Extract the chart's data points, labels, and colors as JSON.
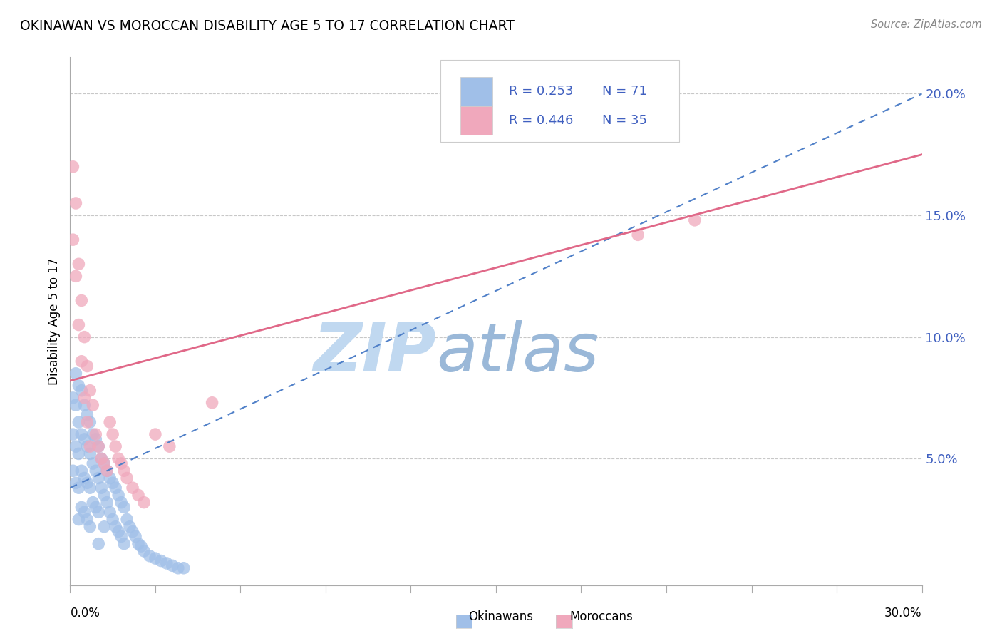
{
  "title": "OKINAWAN VS MOROCCAN DISABILITY AGE 5 TO 17 CORRELATION CHART",
  "source": "Source: ZipAtlas.com",
  "ylabel": "Disability Age 5 to 17",
  "xmin": 0.0,
  "xmax": 0.3,
  "ymin": -0.002,
  "ymax": 0.215,
  "right_yticks": [
    0.05,
    0.1,
    0.15,
    0.2
  ],
  "right_yticklabels": [
    "5.0%",
    "10.0%",
    "15.0%",
    "20.0%"
  ],
  "okinawan_R": 0.253,
  "okinawan_N": 71,
  "moroccan_R": 0.446,
  "moroccan_N": 35,
  "blue_dot_color": "#a0bfe8",
  "pink_dot_color": "#f0a8bc",
  "blue_line_color": "#5080c8",
  "pink_line_color": "#e06888",
  "legend_text_color": "#4060c0",
  "watermark_zip_color": "#c0d8f0",
  "watermark_atlas_color": "#9ab8d8",
  "grid_color": "#c8c8c8",
  "okinawan_x": [
    0.001,
    0.001,
    0.001,
    0.002,
    0.002,
    0.002,
    0.002,
    0.003,
    0.003,
    0.003,
    0.003,
    0.003,
    0.004,
    0.004,
    0.004,
    0.004,
    0.005,
    0.005,
    0.005,
    0.005,
    0.006,
    0.006,
    0.006,
    0.006,
    0.007,
    0.007,
    0.007,
    0.007,
    0.008,
    0.008,
    0.008,
    0.009,
    0.009,
    0.009,
    0.01,
    0.01,
    0.01,
    0.01,
    0.011,
    0.011,
    0.012,
    0.012,
    0.012,
    0.013,
    0.013,
    0.014,
    0.014,
    0.015,
    0.015,
    0.016,
    0.016,
    0.017,
    0.017,
    0.018,
    0.018,
    0.019,
    0.019,
    0.02,
    0.021,
    0.022,
    0.023,
    0.024,
    0.025,
    0.026,
    0.028,
    0.03,
    0.032,
    0.034,
    0.036,
    0.038,
    0.04
  ],
  "okinawan_y": [
    0.075,
    0.06,
    0.045,
    0.085,
    0.072,
    0.055,
    0.04,
    0.08,
    0.065,
    0.052,
    0.038,
    0.025,
    0.078,
    0.06,
    0.045,
    0.03,
    0.072,
    0.058,
    0.042,
    0.028,
    0.068,
    0.055,
    0.04,
    0.025,
    0.065,
    0.052,
    0.038,
    0.022,
    0.06,
    0.048,
    0.032,
    0.058,
    0.045,
    0.03,
    0.055,
    0.042,
    0.028,
    0.015,
    0.05,
    0.038,
    0.048,
    0.035,
    0.022,
    0.045,
    0.032,
    0.042,
    0.028,
    0.04,
    0.025,
    0.038,
    0.022,
    0.035,
    0.02,
    0.032,
    0.018,
    0.03,
    0.015,
    0.025,
    0.022,
    0.02,
    0.018,
    0.015,
    0.014,
    0.012,
    0.01,
    0.009,
    0.008,
    0.007,
    0.006,
    0.005,
    0.005
  ],
  "moroccan_x": [
    0.001,
    0.001,
    0.002,
    0.002,
    0.003,
    0.003,
    0.004,
    0.004,
    0.005,
    0.005,
    0.006,
    0.006,
    0.007,
    0.007,
    0.008,
    0.009,
    0.01,
    0.011,
    0.012,
    0.013,
    0.014,
    0.015,
    0.016,
    0.017,
    0.018,
    0.019,
    0.02,
    0.022,
    0.024,
    0.026,
    0.03,
    0.035,
    0.22,
    0.2,
    0.05
  ],
  "moroccan_y": [
    0.17,
    0.14,
    0.155,
    0.125,
    0.13,
    0.105,
    0.115,
    0.09,
    0.1,
    0.075,
    0.088,
    0.065,
    0.078,
    0.055,
    0.072,
    0.06,
    0.055,
    0.05,
    0.048,
    0.045,
    0.065,
    0.06,
    0.055,
    0.05,
    0.048,
    0.045,
    0.042,
    0.038,
    0.035,
    0.032,
    0.06,
    0.055,
    0.148,
    0.142,
    0.073
  ],
  "ok_trend_x0": 0.0,
  "ok_trend_x1": 0.3,
  "ok_trend_y0": 0.038,
  "ok_trend_y1": 0.2,
  "mor_trend_x0": 0.0,
  "mor_trend_x1": 0.3,
  "mor_trend_y0": 0.082,
  "mor_trend_y1": 0.175
}
